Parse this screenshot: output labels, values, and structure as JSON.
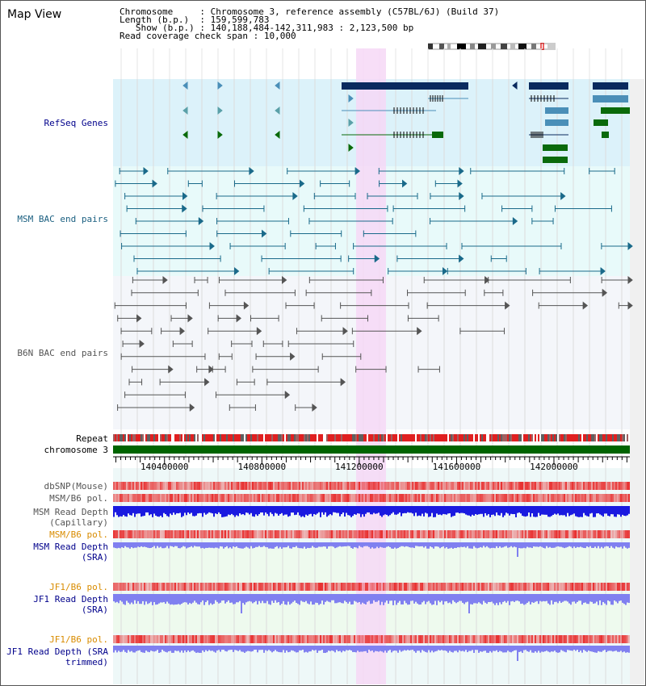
{
  "view_title": "Map View",
  "info": {
    "chromosome_key": "Chromosome",
    "chromosome_val": "Chromosome 3, reference assembly (C57BL/6J) (Build 37)",
    "length_key": "Length (b.p.)",
    "length_val": "159,599,783",
    "show_key": "Show (b.p.)",
    "show_val": "140,188,484-142,311,983 : 2,123,500 bp",
    "span_key": "Read coverage check span",
    "span_val": "10,000"
  },
  "tracks": {
    "refseq": {
      "label": "RefSeq Genes",
      "color": "#00008b"
    },
    "msm_bac": {
      "label": "MSM BAC end pairs",
      "color": "#1a5f80"
    },
    "b6n_bac": {
      "label": "B6N BAC end pairs",
      "color": "#555555"
    },
    "repeat": {
      "label": "Repeat",
      "color": "#000000"
    },
    "chrom": {
      "label": "chromosome 3",
      "color": "#000000"
    },
    "dbsnp": {
      "label": "dbSNP(Mouse)",
      "color": "#555555"
    },
    "msm_pol": {
      "label": "MSM/B6 pol.",
      "color": "#555555"
    },
    "msm_cap": {
      "label": "MSM Read Depth (Capillary)",
      "color": "#555555"
    },
    "msm_pol2": {
      "label": "MSM/B6 pol.",
      "color": "#d98c00"
    },
    "msm_sra": {
      "label": "MSM Read Depth (SRA)",
      "color": "#00008b"
    },
    "jf1_pol": {
      "label": "JF1/B6 pol.",
      "color": "#d98c00"
    },
    "jf1_sra": {
      "label": "JF1 Read Depth (SRA)",
      "color": "#00008b"
    },
    "jf1_pol2": {
      "label": "JF1/B6 pol.",
      "color": "#d98c00"
    },
    "jf1_trim": {
      "label": "JF1 Read Depth (SRA trimmed)",
      "color": "#00008b"
    }
  },
  "axis": {
    "range_bp": [
      140188484,
      142311983
    ],
    "tick_labels": [
      "140400000",
      "140800000",
      "141200000",
      "141600000",
      "142000000"
    ],
    "tick_values": [
      140400000,
      140800000,
      141200000,
      141600000,
      142000000
    ]
  },
  "colors": {
    "refseq_bg": "#dcf2fa",
    "msm_bg": "#e8fafa",
    "b6n_bg": "#f4f6fa",
    "highlight": "#f6d8f6",
    "refseq_dark": "#0a2a5e",
    "refseq_mid": "#4a8fb8",
    "refseq_green": "#0a6a0a",
    "msm_line": "#1a6a8a",
    "b6n_line": "#555555",
    "chrom_bar": "#006400",
    "read_blue": "#1a1ae0",
    "read_light": "#8080f0",
    "snp_red": "#e83030"
  }
}
